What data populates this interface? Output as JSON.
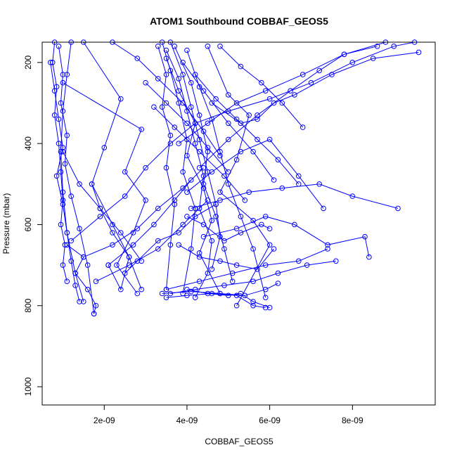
{
  "chart_data": {
    "type": "line",
    "title": "ATOM1 Southbound COBBAF_GEOS5",
    "xlabel": "COBBAF_GEOS5",
    "ylabel": "Pressure (mbar)",
    "xlim": [
      5e-10,
      1e-08
    ],
    "ylim": [
      150,
      1045
    ],
    "y_reversed": true,
    "x_ticks": [
      {
        "value": 2e-09,
        "label": "2e-09"
      },
      {
        "value": 4e-09,
        "label": "4e-09"
      },
      {
        "value": 6e-09,
        "label": "6e-09"
      },
      {
        "value": 8e-09,
        "label": "8e-09"
      }
    ],
    "y_ticks": [
      {
        "value": 200,
        "label": "200"
      },
      {
        "value": 400,
        "label": "400"
      },
      {
        "value": 600,
        "label": "600"
      },
      {
        "value": 800,
        "label": "800"
      },
      {
        "value": 1000,
        "label": "1000"
      }
    ],
    "series_color": "#0000ff",
    "marker": "open-circle",
    "series": [
      {
        "x": [
          8e-10,
          7.5e-10,
          8.5e-10,
          8e-10,
          9e-10,
          9.5e-10,
          1e-09,
          9.5e-10,
          1.05e-09,
          1e-09,
          1.1e-09
        ],
        "y": [
          150,
          200,
          260,
          330,
          400,
          470,
          540,
          600,
          650,
          700,
          740
        ]
      },
      {
        "x": [
          7e-10,
          8e-10,
          9e-10,
          1e-09,
          8.5e-10,
          1e-09,
          1.1e-09,
          1.2e-09,
          1.3e-09,
          1.4e-09
        ],
        "y": [
          200,
          270,
          340,
          410,
          480,
          550,
          620,
          690,
          750,
          790
        ]
      },
      {
        "x": [
          9e-10,
          1e-09,
          9.5e-10,
          1.1e-09,
          1.05e-09,
          1.2e-09,
          1.4e-09,
          1.6e-09,
          1.75e-09
        ],
        "y": [
          160,
          230,
          300,
          380,
          450,
          530,
          610,
          700,
          820
        ]
      },
      {
        "x": [
          1.2e-09,
          1.1e-09,
          1e-09,
          9.5e-10,
          1e-09,
          1.1e-09,
          1.3e-09,
          1.5e-09
        ],
        "y": [
          150,
          230,
          320,
          420,
          520,
          620,
          720,
          790
        ]
      },
      {
        "x": [
          1.5e-09,
          2.4e-09,
          2e-09,
          1.7e-09,
          2.2e-09,
          2.6e-09,
          2.4e-09,
          2.1e-09
        ],
        "y": [
          150,
          290,
          410,
          500,
          600,
          680,
          760,
          700
        ]
      },
      {
        "x": [
          1e-09,
          2.9e-09,
          2.5e-09,
          3e-09,
          2.7e-09,
          2.3e-09,
          2.8e-09
        ],
        "y": [
          250,
          365,
          470,
          540,
          620,
          700,
          770
        ]
      },
      {
        "x": [
          3.3e-09,
          3.5e-09,
          3.4e-09,
          3.6e-09,
          3.5e-09,
          3.7e-09,
          3.6e-09,
          3.5e-09
        ],
        "y": [
          160,
          230,
          310,
          380,
          460,
          550,
          650,
          760
        ]
      },
      {
        "x": [
          3.4e-09,
          3.6e-09,
          3.8e-09,
          4e-09,
          3.9e-09,
          4.2e-09,
          4.1e-09,
          3.9e-09
        ],
        "y": [
          150,
          220,
          300,
          390,
          470,
          560,
          660,
          770
        ]
      },
      {
        "x": [
          3.5e-09,
          3.8e-09,
          4e-09,
          4.2e-09,
          4.4e-09,
          4.3e-09,
          4.6e-09,
          4.5e-09,
          4.2e-09
        ],
        "y": [
          170,
          240,
          320,
          400,
          480,
          560,
          640,
          720,
          780
        ]
      },
      {
        "x": [
          3.6e-09,
          3.9e-09,
          4.1e-09,
          4.3e-09,
          4.5e-09,
          4.7e-09,
          4.8e-09,
          4.6e-09
        ],
        "y": [
          150,
          230,
          310,
          390,
          470,
          550,
          630,
          710
        ]
      },
      {
        "x": [
          3.7e-09,
          4.1e-09,
          4.3e-09,
          4.5e-09,
          4.4e-09,
          4.7e-09,
          4.9e-09,
          5.1e-09
        ],
        "y": [
          160,
          250,
          330,
          420,
          500,
          580,
          660,
          740
        ]
      },
      {
        "x": [
          3.5e-09,
          3.8e-09,
          4.2e-09,
          4e-09,
          4.4e-09,
          4.6e-09,
          4.3e-09,
          4.8e-09
        ],
        "y": [
          190,
          270,
          350,
          430,
          510,
          590,
          670,
          770
        ]
      },
      {
        "x": [
          4e-09,
          4.3e-09,
          4.6e-09,
          4.8e-09,
          5e-09,
          5.3e-09,
          5.6e-09,
          5.9e-09
        ],
        "y": [
          170,
          260,
          340,
          420,
          500,
          580,
          660,
          780
        ]
      },
      {
        "x": [
          4.5e-09,
          5e-09,
          5.5e-09,
          5.2e-09,
          4.8e-09,
          5.6e-09,
          6e-09,
          5.2e-09
        ],
        "y": [
          160,
          280,
          330,
          440,
          520,
          590,
          650,
          800
        ]
      },
      {
        "x": [
          4.6e-09,
          5.3e-09,
          5.7e-09,
          6.1e-09,
          6.6e-09,
          7.5e-09,
          8.5e-09,
          9.6e-09
        ],
        "y": [
          300,
          350,
          340,
          300,
          280,
          230,
          190,
          175
        ]
      },
      {
        "x": [
          4.2e-09,
          5e-09,
          6e-09,
          7e-09,
          8e-09,
          9e-09,
          9.5e-09
        ],
        "y": [
          350,
          320,
          290,
          250,
          200,
          160,
          150
        ]
      },
      {
        "x": [
          3.8e-09,
          4.5e-09,
          5.2e-09,
          5.9e-09,
          6.8e-09,
          7.8e-09,
          8.8e-09
        ],
        "y": [
          400,
          350,
          300,
          270,
          230,
          180,
          150
        ]
      },
      {
        "x": [
          4.3e-09,
          5e-09,
          5.7e-09,
          6.5e-09,
          7.2e-09,
          7.8e-09,
          8.6e-09
        ],
        "y": [
          460,
          390,
          330,
          270,
          220,
          180,
          160
        ]
      },
      {
        "x": [
          4e-09,
          4.6e-09,
          5.3e-09,
          6e-09,
          6.7e-09,
          7.3e-09
        ],
        "y": [
          520,
          470,
          420,
          390,
          480,
          560
        ]
      },
      {
        "x": [
          4.1e-09,
          4.8e-09,
          5.5e-09,
          6.3e-09,
          7.2e-09,
          8e-09,
          9.1e-09
        ],
        "y": [
          560,
          540,
          520,
          510,
          500,
          530,
          560
        ]
      },
      {
        "x": [
          4.4e-09,
          5.2e-09,
          5.9e-09,
          6.6e-09,
          7.4e-09,
          8.3e-09,
          8.4e-09
        ],
        "y": [
          630,
          610,
          580,
          600,
          650,
          630,
          680
        ]
      },
      {
        "x": [
          3.5e-09,
          4.3e-09,
          5.1e-09,
          5.9e-09,
          6.7e-09,
          7.4e-09
        ],
        "y": [
          760,
          740,
          720,
          700,
          690,
          660
        ]
      },
      {
        "x": [
          3.6e-09,
          4.2e-09,
          4.9e-09,
          5.6e-09,
          6.2e-09,
          6.9e-09,
          7.6e-09
        ],
        "y": [
          770,
          760,
          750,
          740,
          720,
          700,
          690
        ]
      },
      {
        "x": [
          3.4e-09,
          4.1e-09,
          4.8e-09,
          5.4e-09,
          5.9e-09,
          6.2e-09
        ],
        "y": [
          770,
          765,
          770,
          775,
          760,
          745
        ]
      },
      {
        "x": [
          3.5e-09,
          4e-09,
          4.6e-09,
          5.2e-09,
          5.6e-09,
          5.9e-09
        ],
        "y": [
          780,
          775,
          770,
          775,
          800,
          805
        ]
      },
      {
        "x": [
          4e-09,
          4.5e-09,
          5e-09,
          5.3e-09,
          5.6e-09,
          6e-09
        ],
        "y": [
          760,
          770,
          775,
          770,
          790,
          805
        ]
      },
      {
        "x": [
          3.8e-09,
          4.3e-09,
          4.8e-09,
          5.2e-09,
          5.7e-09,
          6.1e-09
        ],
        "y": [
          650,
          680,
          690,
          700,
          710,
          660
        ]
      },
      {
        "x": [
          4e-09,
          4.4e-09,
          4.9e-09,
          5.3e-09,
          5.8e-09,
          6e-09
        ],
        "y": [
          580,
          600,
          640,
          620,
          600,
          610
        ]
      },
      {
        "x": [
          1.8e-09,
          2.6e-09,
          3.3e-09,
          3.9e-09,
          4.5e-09
        ],
        "y": [
          740,
          700,
          660,
          600,
          540
        ]
      },
      {
        "x": [
          1.5e-09,
          2.2e-09,
          2.8e-09,
          3.3e-09,
          3.9e-09,
          4.4e-09
        ],
        "y": [
          680,
          650,
          610,
          560,
          510,
          460
        ]
      },
      {
        "x": [
          1.2e-09,
          1.9e-09,
          2.5e-09,
          3e-09,
          3.6e-09,
          4.2e-09
        ],
        "y": [
          640,
          580,
          530,
          460,
          400,
          350
        ]
      },
      {
        "x": [
          2.1e-09,
          2.7e-09,
          3.2e-09,
          3.7e-09,
          4.1e-09
        ],
        "y": [
          700,
          650,
          600,
          540,
          490
        ]
      },
      {
        "x": [
          2.5e-09,
          2.8e-09,
          3.3e-09,
          3.8e-09,
          4.2e-09,
          4.7e-09
        ],
        "y": [
          720,
          690,
          640,
          620,
          580,
          550
        ]
      },
      {
        "x": [
          3e-09,
          3.5e-09,
          4e-09,
          4.5e-09,
          5e-09
        ],
        "y": [
          250,
          300,
          350,
          410,
          470
        ]
      },
      {
        "x": [
          2.2e-09,
          2.8e-09,
          3.3e-09,
          3.9e-09,
          4.4e-09,
          4.8e-09
        ],
        "y": [
          150,
          190,
          240,
          300,
          370,
          430
        ]
      },
      {
        "x": [
          3.2e-09,
          3.7e-09,
          4.3e-09,
          4.9e-09,
          5.4e-09
        ],
        "y": [
          310,
          360,
          420,
          480,
          540
        ]
      },
      {
        "x": [
          3.9e-09,
          4.4e-09,
          5e-09,
          5.6e-09,
          6.1e-09
        ],
        "y": [
          200,
          270,
          350,
          420,
          490
        ]
      },
      {
        "x": [
          1e-09,
          1.4e-09,
          1.9e-09,
          2.4e-09,
          2.9e-09
        ],
        "y": [
          420,
          500,
          560,
          620,
          690
        ]
      },
      {
        "x": [
          1.1e-09,
          1.5e-09,
          1.3e-09,
          1.6e-09,
          1.8e-09,
          1.75e-09
        ],
        "y": [
          650,
          680,
          720,
          760,
          800,
          820
        ]
      },
      {
        "x": [
          1.7e-09,
          1.9e-09,
          2.2e-09,
          2.6e-09,
          2.9e-09
        ],
        "y": [
          500,
          560,
          620,
          680,
          760
        ]
      },
      {
        "x": [
          4.8e-09,
          5.3e-09,
          5.8e-09,
          6.3e-09,
          6.8e-09
        ],
        "y": [
          160,
          210,
          250,
          300,
          360
        ]
      },
      {
        "x": [
          4.2e-09,
          4.7e-09,
          5.2e-09,
          5.7e-09,
          6.2e-09,
          6.7e-09
        ],
        "y": [
          230,
          290,
          340,
          390,
          440,
          500
        ]
      }
    ]
  }
}
